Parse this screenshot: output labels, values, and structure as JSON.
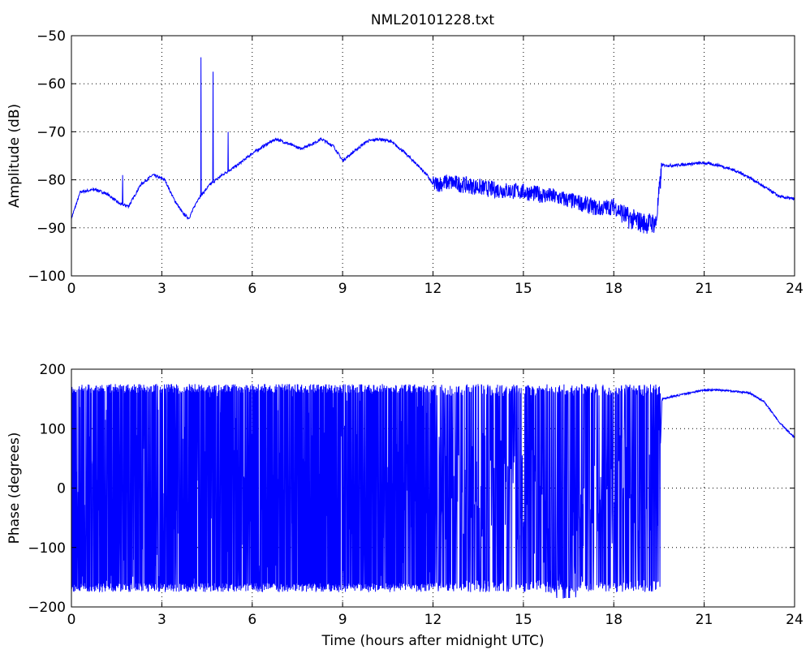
{
  "chart_data": [
    {
      "type": "line",
      "title": "NML20101228.txt",
      "xlabel": "",
      "ylabel": "Amplitude (dB)",
      "xlim": [
        0,
        24
      ],
      "ylim": [
        -100,
        -50
      ],
      "xticks": [
        0,
        3,
        6,
        9,
        12,
        15,
        18,
        21,
        24
      ],
      "yticks": [
        -100,
        -90,
        -80,
        -70,
        -60,
        -50
      ],
      "grid": true,
      "line_color": "#0000ff",
      "series": [
        {
          "x": [
            0,
            0.3,
            0.8,
            1.2,
            1.6,
            1.9,
            2.3,
            2.7,
            3.1,
            3.4,
            3.7,
            3.9,
            4.2,
            4.6,
            5.0,
            5.5,
            6.0,
            6.5,
            6.8,
            7.2,
            7.6,
            8.0,
            8.3,
            8.7,
            9.0,
            9.4,
            9.8,
            10.2,
            10.6,
            11.0,
            11.5,
            11.8,
            12.0,
            12.5,
            13.0,
            14.0,
            15.0,
            16.0,
            17.0,
            17.5,
            18.0,
            18.5,
            19.0,
            19.4,
            19.6,
            20.0,
            20.5,
            21.0,
            21.5,
            22.0,
            22.5,
            23.0,
            23.5,
            24.0
          ],
          "values": [
            -88,
            -82.5,
            -82,
            -83,
            -85,
            -85.5,
            -81,
            -79,
            -80,
            -84,
            -87,
            -88,
            -84,
            -81,
            -79,
            -77,
            -74.5,
            -72.5,
            -71.5,
            -72.5,
            -73.5,
            -72.5,
            -71.5,
            -73,
            -76,
            -74,
            -72,
            -71.5,
            -72,
            -74,
            -77,
            -79,
            -81,
            -80.5,
            -81,
            -82,
            -82.5,
            -83.5,
            -85,
            -86,
            -85.5,
            -88,
            -89,
            -89,
            -77,
            -77,
            -76.7,
            -76.5,
            -77,
            -78,
            -79.5,
            -81.5,
            -83.5,
            -84
          ]
        }
      ]
    },
    {
      "type": "line",
      "title": "",
      "xlabel": "Time (hours after midnight UTC)",
      "ylabel": "Phase (degrees)",
      "xlim": [
        0,
        24
      ],
      "ylim": [
        -200,
        200
      ],
      "xticks": [
        0,
        3,
        6,
        9,
        12,
        15,
        18,
        21,
        24
      ],
      "yticks": [
        -200,
        -100,
        0,
        100,
        200
      ],
      "grid": true,
      "line_color": "#0000ff",
      "series": [
        {
          "x": [
            0,
            1.5,
            3.0,
            3.8,
            3.85,
            6.0,
            9.0,
            12.1,
            12.3,
            13.5,
            15.0,
            16.2,
            16.8,
            17.5,
            18.5,
            19.5,
            19.6,
            20.5,
            21.0,
            21.5,
            22.0,
            22.5,
            23.0,
            23.5,
            24.0
          ],
          "values": [
            0,
            0,
            0,
            0,
            0,
            0,
            0,
            0,
            0,
            0,
            0,
            -120,
            -100,
            0,
            0,
            0,
            150,
            160,
            165,
            165,
            163,
            160,
            145,
            110,
            85
          ]
        }
      ]
    }
  ]
}
